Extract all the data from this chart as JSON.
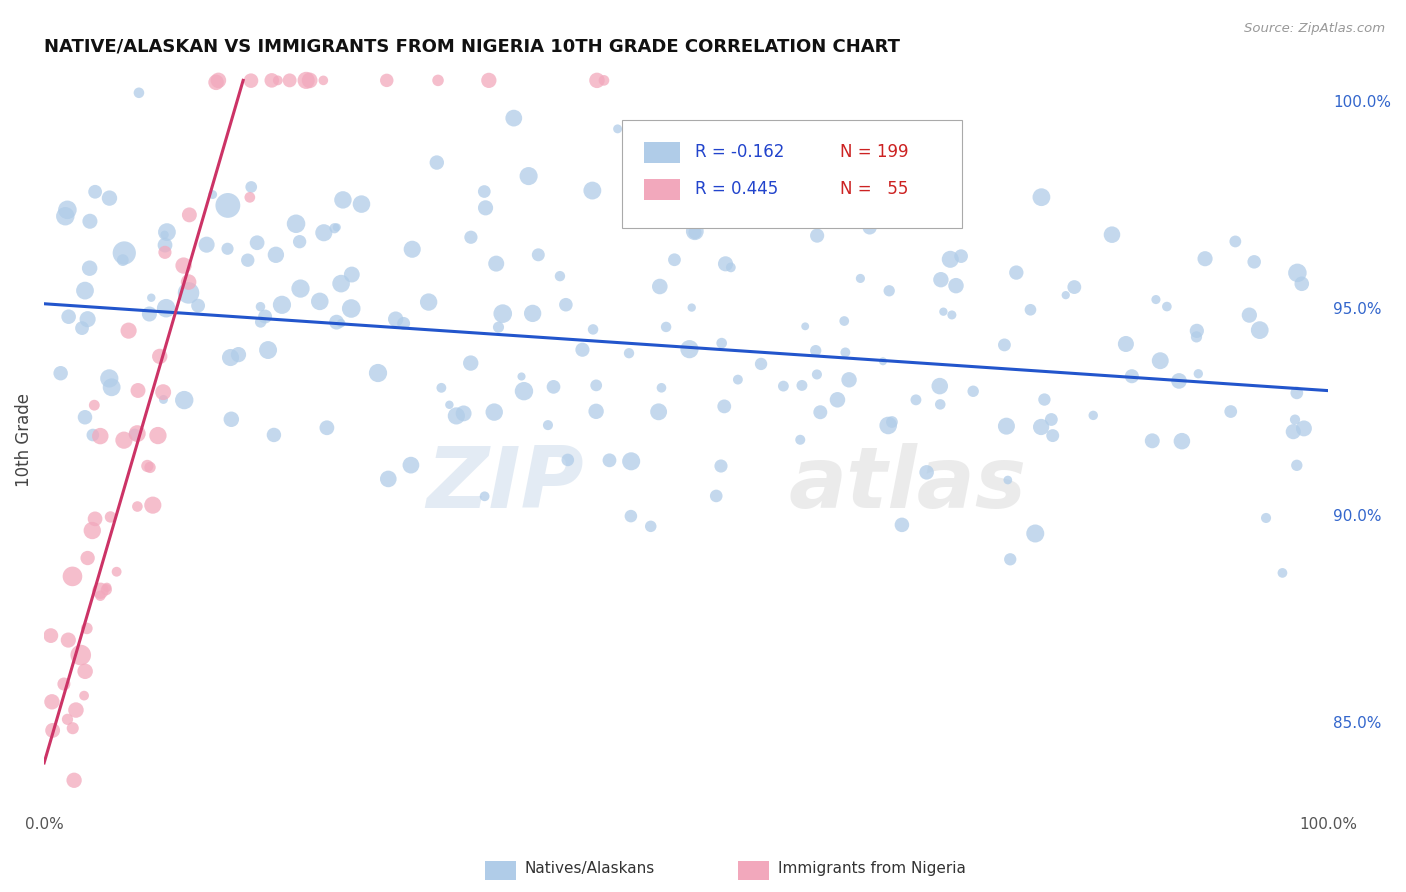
{
  "title": "NATIVE/ALASKAN VS IMMIGRANTS FROM NIGERIA 10TH GRADE CORRELATION CHART",
  "source_text": "Source: ZipAtlas.com",
  "ylabel": "10th Grade",
  "watermark": "ZIPatlas",
  "legend_r_blue": "-0.162",
  "legend_n_blue": "199",
  "legend_r_pink": "0.445",
  "legend_n_pink": "55",
  "legend_label_blue": "Natives/Alaskans",
  "legend_label_pink": "Immigrants from Nigeria",
  "xlim": [
    0.0,
    1.0
  ],
  "ylim": [
    0.828,
    1.008
  ],
  "right_yticks": [
    0.85,
    0.9,
    0.95,
    1.0
  ],
  "right_yticklabels": [
    "85.0%",
    "90.0%",
    "95.0%",
    "100.0%"
  ],
  "blue_color": "#b0cce8",
  "pink_color": "#f2a8bc",
  "blue_line_color": "#2255cc",
  "pink_line_color": "#cc3366",
  "grid_color": "#cccccc",
  "blue_trend_x0": 0.0,
  "blue_trend_y0": 0.951,
  "blue_trend_x1": 1.0,
  "blue_trend_y1": 0.93,
  "pink_trend_x0": 0.0,
  "pink_trend_y0": 0.84,
  "pink_trend_x1": 0.155,
  "pink_trend_y1": 1.005,
  "figsize": [
    14.06,
    8.92
  ],
  "dpi": 100
}
